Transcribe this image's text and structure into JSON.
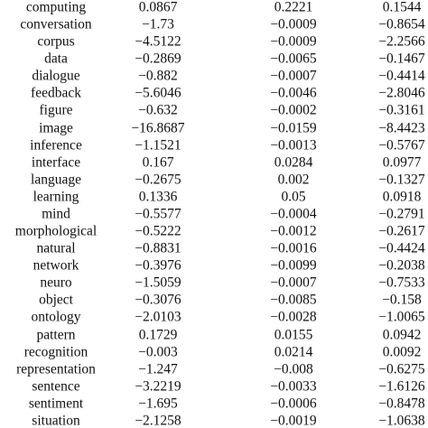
{
  "table": {
    "rows": [
      [
        "computing",
        "0.0867",
        "0.2221",
        "0.1544"
      ],
      [
        "conversation",
        "−1.73",
        "−0.0009",
        "−0.8654"
      ],
      [
        "corpus",
        "−4.5122",
        "−0.0009",
        "−2.2566"
      ],
      [
        "data",
        "−0.2869",
        "−0.0065",
        "−0.1467"
      ],
      [
        "dialogue",
        "−0.882",
        "−0.0007",
        "−0.4414"
      ],
      [
        "feedback",
        "−5.6046",
        "−0.0046",
        "−2.8046"
      ],
      [
        "figure",
        "−0.632",
        "−0.0002",
        "−0.3161"
      ],
      [
        "image",
        "−16.8687",
        "−0.0159",
        "−8.4423"
      ],
      [
        "inference",
        "−1.1521",
        "−0.0013",
        "−0.5767"
      ],
      [
        "interface",
        "0.167",
        "0.0284",
        "0.0977"
      ],
      [
        "language",
        "−0.2675",
        "0.002",
        "−0.1327"
      ],
      [
        "learning",
        "0.1336",
        "0.05",
        "0.0918"
      ],
      [
        "mind",
        "−0.5577",
        "−0.0004",
        "−0.2791"
      ],
      [
        "morphological",
        "−0.5222",
        "−0.0012",
        "−0.2617"
      ],
      [
        "natural",
        "−0.8831",
        "−0.0016",
        "−0.4424"
      ],
      [
        "network",
        "−0.3976",
        "−0.0099",
        "−0.2038"
      ],
      [
        "neuro",
        "−1.5059",
        "−0.0007",
        "−0.7533"
      ],
      [
        "object",
        "−0.3076",
        "−0.0085",
        "−0.158"
      ],
      [
        "ontology",
        "−2.0103",
        "−0.0028",
        "−1.0065"
      ],
      [
        "pattern",
        "0.1729",
        "0.0155",
        "0.0942"
      ],
      [
        "recognition",
        "−0.003",
        "0.0214",
        "0.0092"
      ],
      [
        "representation",
        "−1.247",
        "−0.008",
        "−0.6275"
      ],
      [
        "sentence",
        "−3.2219",
        "−0.0033",
        "−1.6126"
      ],
      [
        "sentiment",
        "−1.695",
        "−0.0006",
        "−0.8478"
      ],
      [
        "situation",
        "−2.1258",
        "−0.0019",
        "−1.0638"
      ]
    ]
  }
}
